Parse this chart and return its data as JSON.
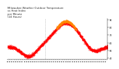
{
  "title": "Milwaukee Weather Outdoor Temperature\nvs Heat Index\nper Minute\n(24 Hours)",
  "title_fontsize": 2.8,
  "bg_color": "#ffffff",
  "temp_color": "#ff0000",
  "heat_color": "#ff8800",
  "vline_color": "#999999",
  "ylim": [
    38,
    92
  ],
  "yticks": [
    40,
    50,
    60,
    70,
    80,
    90
  ],
  "ytick_labels": [
    "40",
    "50",
    "60",
    "70",
    "80",
    "90"
  ],
  "vline_x": 540,
  "n_minutes": 1440,
  "marker_size": 0.5
}
